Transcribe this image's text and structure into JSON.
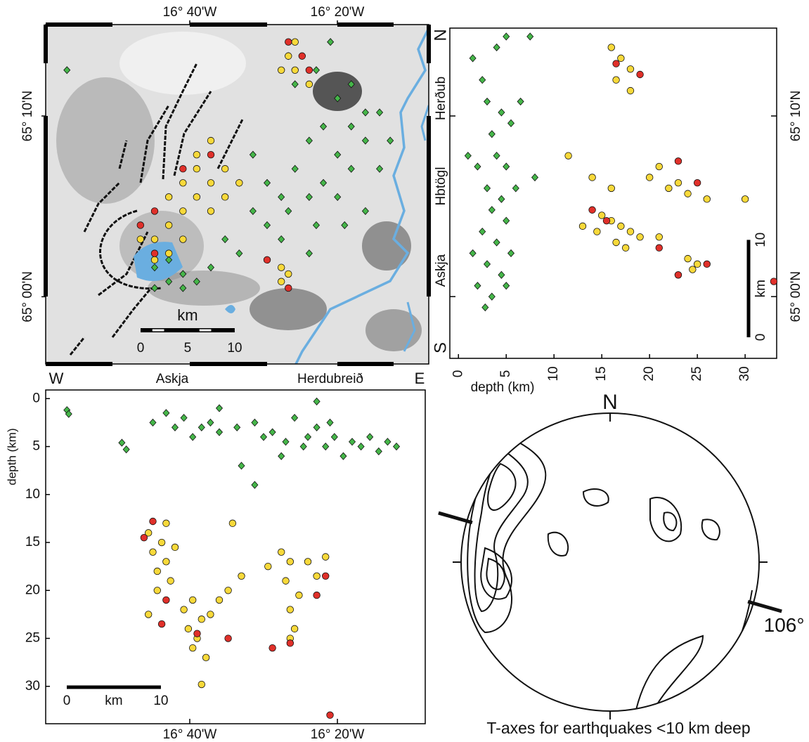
{
  "chart_data": [
    {
      "type": "map",
      "xlim": [
        -16.992,
        -16.127
      ],
      "ylim": [
        64.938,
        65.251
      ],
      "xticks": [
        {
          "value": -16.6667,
          "label": "16° 40'W"
        },
        {
          "value": -16.3333,
          "label": "16° 20'W"
        }
      ],
      "yticks": [
        {
          "value": 65.1667,
          "label": "65° 10'N"
        },
        {
          "value": 65.0,
          "label": "65° 00'N"
        }
      ],
      "scale_bar": {
        "label": "km",
        "ticks": [
          0,
          5,
          10
        ]
      },
      "series": [
        {
          "color": "#45b649",
          "marker": "diamond",
          "x": [
            -16.944,
            -16.444,
            -16.429,
            -16.381,
            -16.349,
            -16.333,
            -16.302,
            -16.27,
            -16.302,
            -16.365,
            -16.397,
            -16.333,
            -16.27,
            -16.238,
            -16.302,
            -16.365,
            -16.429,
            -16.46,
            -16.397,
            -16.333,
            -16.27,
            -16.317,
            -16.381,
            -16.444,
            -16.492,
            -16.524,
            -16.46,
            -16.397,
            -16.555,
            -16.587,
            -16.492,
            -16.524,
            -16.555,
            -16.682,
            -16.714,
            -16.746,
            -16.714,
            -16.682,
            -16.651,
            -16.619,
            -16.746,
            -16.238,
            -16.214
          ],
          "values": [
            65.209,
            65.222,
            65.196,
            65.209,
            65.235,
            65.183,
            65.196,
            65.17,
            65.157,
            65.157,
            65.144,
            65.131,
            65.144,
            65.118,
            65.118,
            65.105,
            65.118,
            65.092,
            65.092,
            65.092,
            65.079,
            65.066,
            65.066,
            65.079,
            65.066,
            65.079,
            65.053,
            65.04,
            65.04,
            65.053,
            65.105,
            65.131,
            65.105,
            65.021,
            65.014,
            65.027,
            65.034,
            65.008,
            65.014,
            65.027,
            65.008,
            65.17,
            65.144
          ]
        },
        {
          "color": "#f8d93a",
          "marker": "circle",
          "x": [
            -16.682,
            -16.651,
            -16.619,
            -16.587,
            -16.651,
            -16.714,
            -16.619,
            -16.682,
            -16.587,
            -16.555,
            -16.746,
            -16.714,
            -16.714,
            -16.682,
            -16.746,
            -16.778,
            -16.651,
            -16.46,
            -16.444,
            -16.46,
            -16.444,
            -16.429,
            -16.46,
            -16.397,
            -16.429,
            -16.619
          ],
          "values": [
            65.105,
            65.118,
            65.105,
            65.092,
            65.092,
            65.092,
            65.079,
            65.079,
            65.118,
            65.105,
            65.053,
            65.04,
            65.066,
            65.053,
            65.034,
            65.053,
            65.131,
            65.027,
            65.021,
            65.014,
            65.222,
            65.209,
            65.209,
            65.196,
            65.235,
            65.144
          ]
        },
        {
          "color": "#e0302a",
          "marker": "circle",
          "x": [
            -16.746,
            -16.778,
            -16.682,
            -16.619,
            -16.746,
            -16.492,
            -16.444,
            -16.444,
            -16.413,
            -16.397
          ],
          "values": [
            65.079,
            65.066,
            65.118,
            65.131,
            65.04,
            65.034,
            65.008,
            65.235,
            65.222,
            65.209
          ]
        }
      ]
    },
    {
      "type": "scatter",
      "xlabel": "depth (km)",
      "xlim": [
        -0.9,
        33.3
      ],
      "ylim": [
        64.943,
        65.2478
      ],
      "xticks": [
        0,
        5,
        10,
        15,
        20,
        25,
        30
      ],
      "yticks": [
        {
          "value": 65.1667,
          "label": "65° 10'N"
        },
        {
          "value": 65.0,
          "label": "65° 00'N"
        }
      ],
      "side_labels": [
        "N",
        "Herðub",
        "Hbtögl",
        "Askja",
        "S"
      ],
      "scale_bar": {
        "label": "km",
        "ticks": [
          0,
          10
        ]
      },
      "series": [
        {
          "color": "#45b649",
          "marker": "diamond",
          "x": [
            1.5,
            2.5,
            4,
            5,
            3,
            4.5,
            5.5,
            3.5,
            4,
            5,
            2,
            3,
            4.5,
            6,
            3.5,
            5,
            2.5,
            4,
            5.5,
            3,
            4.5,
            2,
            3.5,
            5,
            1,
            8,
            6.5,
            7.5,
            1.5,
            2.8
          ],
          "values": [
            65.22,
            65.2,
            65.23,
            65.24,
            65.18,
            65.17,
            65.16,
            65.15,
            65.13,
            65.12,
            65.12,
            65.1,
            65.09,
            65.1,
            65.08,
            65.07,
            65.06,
            65.05,
            65.04,
            65.03,
            65.02,
            65.01,
            65.0,
            65.01,
            65.13,
            65.11,
            65.18,
            65.24,
            65.04,
            64.99
          ]
        },
        {
          "color": "#f8d93a",
          "marker": "circle",
          "x": [
            16,
            17,
            18,
            16.5,
            18,
            11.5,
            14,
            16,
            20,
            22,
            24,
            26,
            30,
            21,
            23,
            15,
            16,
            17,
            18,
            14.5,
            16.5,
            19,
            13,
            17.5,
            21,
            24,
            25,
            24.5,
            23
          ],
          "values": [
            65.23,
            65.22,
            65.21,
            65.2,
            65.19,
            65.13,
            65.11,
            65.1,
            65.11,
            65.1,
            65.095,
            65.09,
            65.09,
            65.12,
            65.105,
            65.075,
            65.07,
            65.065,
            65.06,
            65.06,
            65.05,
            65.055,
            65.065,
            65.045,
            65.055,
            65.035,
            65.03,
            65.025,
            65.02
          ]
        },
        {
          "color": "#e0302a",
          "marker": "circle",
          "x": [
            16.5,
            19,
            14,
            15.5,
            23,
            25,
            21,
            23,
            26,
            33
          ],
          "values": [
            65.215,
            65.205,
            65.08,
            65.07,
            65.125,
            65.105,
            65.045,
            65.02,
            65.03,
            65.014
          ]
        }
      ]
    },
    {
      "type": "scatter",
      "ylabel": "depth (km)",
      "top_labels": [
        "W",
        "Askja",
        "Herdubreið",
        "E"
      ],
      "xlim": [
        -16.992,
        -16.135
      ],
      "ylim": [
        -0.9,
        33.9
      ],
      "y_inverted": true,
      "xticks": [
        {
          "value": -16.6667,
          "label": "16° 40'W"
        },
        {
          "value": -16.3333,
          "label": "16° 20'W"
        }
      ],
      "yticks": [
        0,
        5,
        10,
        15,
        20,
        25,
        30
      ],
      "scale_bar": {
        "label": "km",
        "ticks": [
          0,
          10
        ]
      },
      "series": [
        {
          "color": "#45b649",
          "marker": "diamond",
          "x": [
            -16.944,
            -16.94,
            -16.82,
            -16.81,
            -16.75,
            -16.72,
            -16.7,
            -16.68,
            -16.66,
            -16.64,
            -16.62,
            -16.6,
            -16.56,
            -16.52,
            -16.5,
            -16.48,
            -16.45,
            -16.43,
            -16.41,
            -16.4,
            -16.38,
            -16.36,
            -16.34,
            -16.32,
            -16.3,
            -16.28,
            -16.26,
            -16.24,
            -16.22,
            -16.2,
            -16.38,
            -16.55,
            -16.6,
            -16.46,
            -16.35,
            -16.52
          ],
          "values": [
            1.2,
            1.6,
            4.6,
            5.3,
            2.5,
            1.5,
            3,
            2,
            4,
            3,
            2.5,
            3.5,
            3,
            2.5,
            4,
            3.5,
            4.5,
            2,
            5,
            4,
            3,
            5,
            4,
            6,
            4.5,
            5,
            4,
            5.5,
            4.5,
            5,
            0.3,
            7,
            1,
            6,
            2.5,
            9
          ]
        },
        {
          "color": "#f8d93a",
          "marker": "circle",
          "x": [
            -16.76,
            -16.75,
            -16.74,
            -16.73,
            -16.72,
            -16.74,
            -16.72,
            -16.7,
            -16.71,
            -16.76,
            -16.68,
            -16.67,
            -16.66,
            -16.65,
            -16.64,
            -16.63,
            -16.62,
            -16.6,
            -16.66,
            -16.64,
            -16.58,
            -16.57,
            -16.55,
            -16.46,
            -16.45,
            -16.44,
            -16.43,
            -16.44,
            -16.42,
            -16.4,
            -16.38,
            -16.36,
            -16.49,
            -16.44
          ],
          "values": [
            14,
            16,
            18,
            15,
            17,
            20,
            13,
            15.5,
            19,
            22.5,
            22,
            24,
            21,
            25,
            23,
            27,
            22.5,
            21,
            26,
            29.8,
            20,
            13,
            18.5,
            16,
            19,
            22,
            24,
            17,
            20.5,
            17,
            18.5,
            16.5,
            17.5,
            25
          ]
        },
        {
          "color": "#e0302a",
          "marker": "circle",
          "x": [
            -16.77,
            -16.75,
            -16.73,
            -16.72,
            -16.65,
            -16.58,
            -16.48,
            -16.44,
            -16.38,
            -16.36,
            -16.35
          ],
          "values": [
            14.5,
            12.8,
            23.5,
            21,
            24.5,
            25,
            26,
            25.5,
            20.5,
            18.5,
            33
          ]
        }
      ]
    },
    {
      "type": "stereonet",
      "north_label": "N",
      "caption": "T-axes for earthquakes <10 km deep",
      "t_axis": {
        "value": 106,
        "label": "106°"
      }
    }
  ]
}
